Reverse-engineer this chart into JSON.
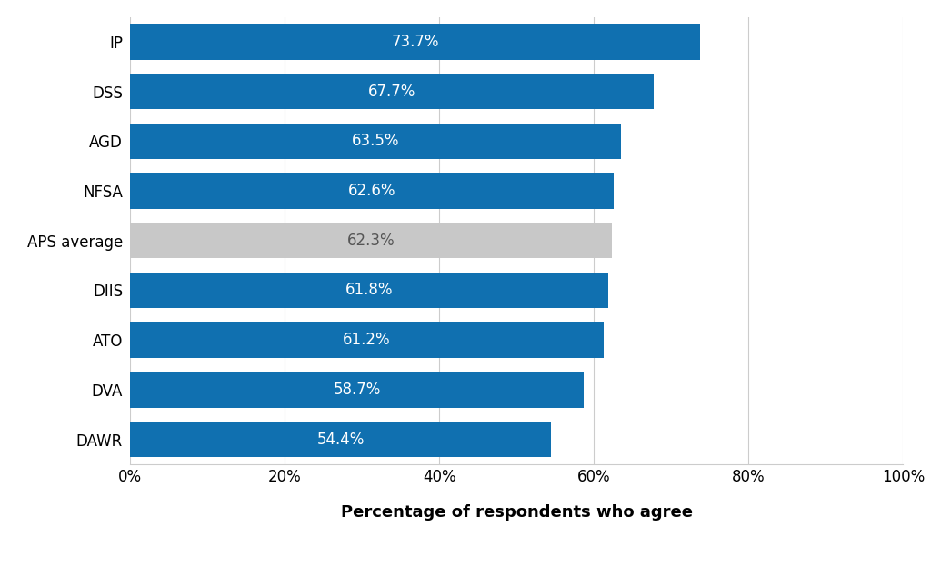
{
  "categories": [
    "IP",
    "DSS",
    "AGD",
    "NFSA",
    "APS average",
    "DIIS",
    "ATO",
    "DVA",
    "DAWR"
  ],
  "values": [
    73.7,
    67.7,
    63.5,
    62.6,
    62.3,
    61.8,
    61.2,
    58.7,
    54.4
  ],
  "bar_colors": [
    "#1070B0",
    "#1070B0",
    "#1070B0",
    "#1070B0",
    "#C8C8C8",
    "#1070B0",
    "#1070B0",
    "#1070B0",
    "#1070B0"
  ],
  "label_color_bar": [
    "white",
    "white",
    "white",
    "white",
    "#555555",
    "white",
    "white",
    "white",
    "white"
  ],
  "xlabel": "Percentage of respondents who agree",
  "xlim": [
    0,
    100
  ],
  "xticks": [
    0,
    20,
    40,
    60,
    80,
    100
  ],
  "xtick_labels": [
    "0%",
    "20%",
    "40%",
    "60%",
    "80%",
    "100%"
  ],
  "background_color": "#ffffff",
  "grid_color": "#cccccc",
  "bar_height": 0.72,
  "label_fontsize": 12,
  "tick_fontsize": 12,
  "xlabel_fontsize": 13
}
